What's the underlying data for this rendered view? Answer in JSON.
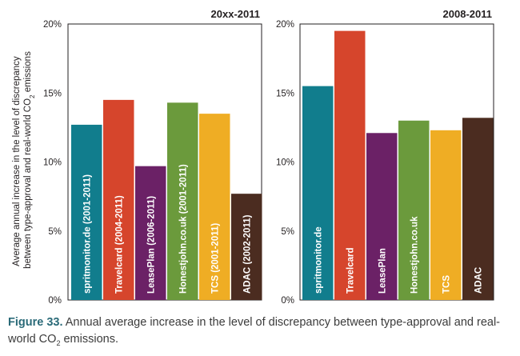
{
  "chart_data": [
    {
      "type": "bar",
      "title": "20xx-2011",
      "ylabel": "Average annual increase in the level of discrepancy between type-approval and real-world CO₂ emissions",
      "ylabel_line1": "Average annual increase in the level of discrepancy",
      "ylabel_line2_pre": "between type-approval and real-world CO",
      "ylabel_line2_sub": "2",
      "ylabel_line2_post": " emissions",
      "ylim": [
        0,
        20
      ],
      "yticks": [
        "0%",
        "5%",
        "10%",
        "15%",
        "20%"
      ],
      "categories": [
        "spritmonitor.de (2001-2011)",
        "Travelcard (2004-2011)",
        "LeasePlan (2006-2011)",
        "Honestjohn.co.uk (2001-2011)",
        "TCS (2001-2011)",
        "ADAC (2002-2011)"
      ],
      "values": [
        12.7,
        14.5,
        9.7,
        14.3,
        13.5,
        7.7
      ],
      "colors": [
        "#117d8d",
        "#d6452c",
        "#6b2166",
        "#6b9a3c",
        "#efad24",
        "#4b2c20"
      ]
    },
    {
      "type": "bar",
      "title": "2008-2011",
      "ylim": [
        0,
        20
      ],
      "yticks": [
        "0%",
        "5%",
        "10%",
        "15%",
        "20%"
      ],
      "categories": [
        "spritmonitor.de",
        "Travelcard",
        "LeasePlan",
        "Honestjohn.co.uk",
        "TCS",
        "ADAC"
      ],
      "values": [
        15.5,
        19.5,
        12.1,
        13.0,
        12.3,
        13.2
      ],
      "colors": [
        "#117d8d",
        "#d6452c",
        "#6b2166",
        "#6b9a3c",
        "#efad24",
        "#4b2c20"
      ]
    }
  ],
  "caption": {
    "figure_label": "Figure 33.",
    "text_pre": " Annual average increase in the level of discrepancy between type-approval and real-world CO",
    "text_sub": "2",
    "text_post": " emissions."
  }
}
